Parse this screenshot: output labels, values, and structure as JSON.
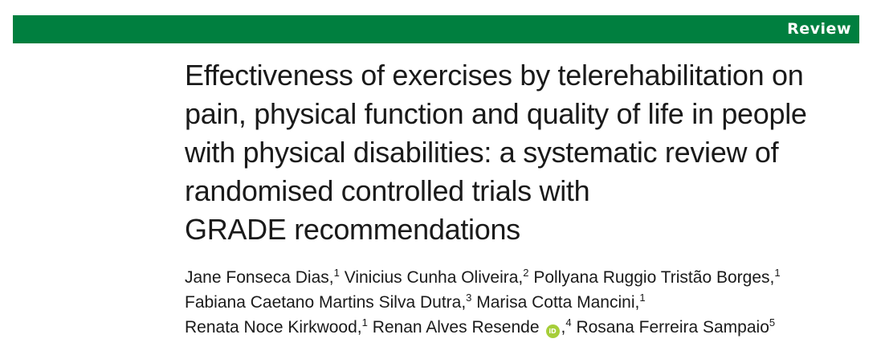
{
  "banner": {
    "label": "Review",
    "color": "#007f3f"
  },
  "title_lines": [
    "Effectiveness of exercises by telerehabilitation on",
    "pain, physical function and quality of life in people",
    "with physical disabilities: a systematic review of",
    "randomised controlled trials with",
    "GRADE recommendations"
  ],
  "authors": [
    {
      "name": "Jane Fonseca Dias,",
      "aff": "1"
    },
    {
      "name": "Vinicius Cunha Oliveira,",
      "aff": "2"
    },
    {
      "name": "Pollyana Ruggio Tristão Borges,",
      "aff": "1"
    },
    {
      "name": "Fabiana Caetano Martins Silva Dutra,",
      "aff": "3"
    },
    {
      "name": "Marisa Cotta Mancini,",
      "aff": "1"
    },
    {
      "name": "Renata Noce Kirkwood,",
      "aff": "1"
    },
    {
      "name": "Renan Alves Resende",
      "aff": "4",
      "orcid": true,
      "orcid_label": "iD",
      "suffix": ","
    },
    {
      "name": "Rosana Ferreira Sampaio",
      "aff": "5"
    }
  ]
}
